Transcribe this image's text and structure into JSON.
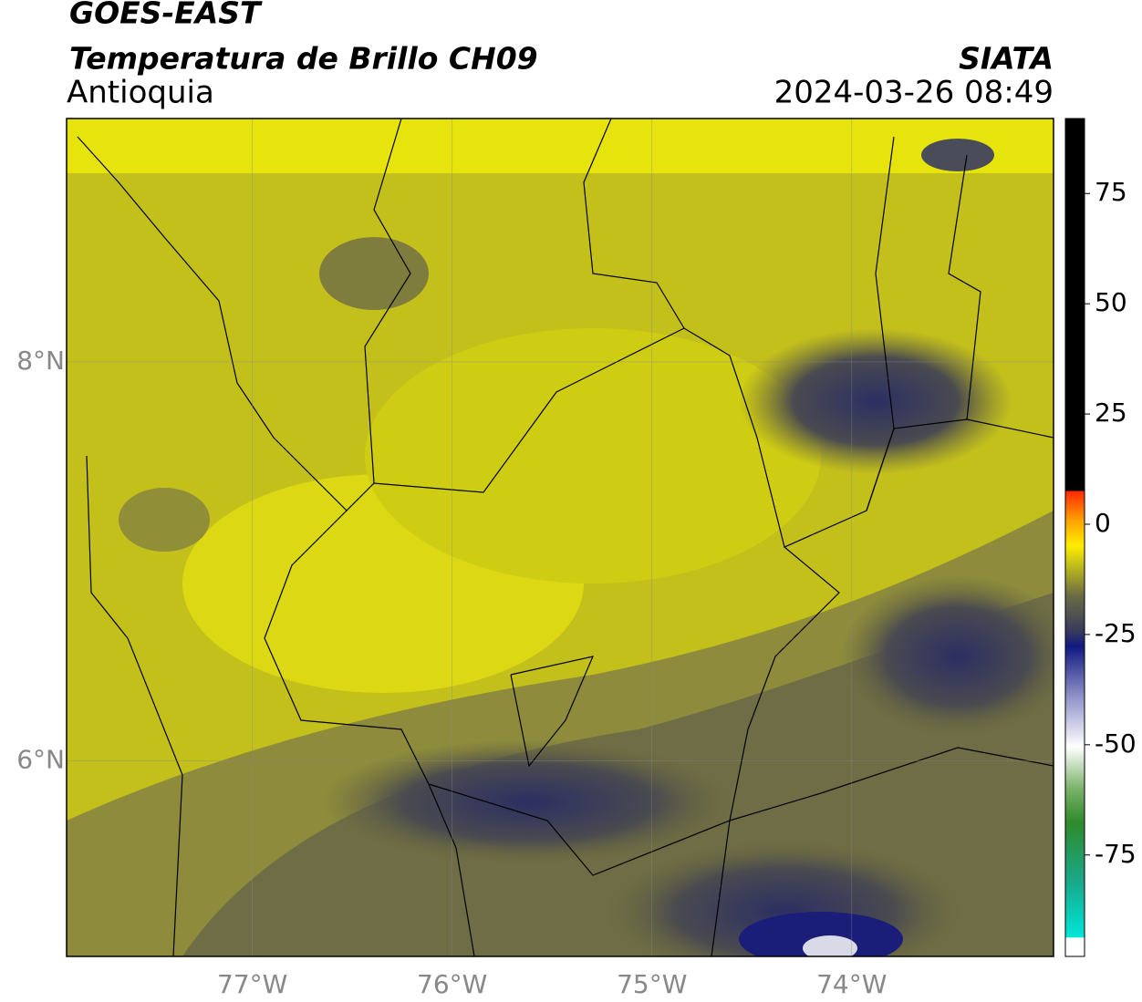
{
  "header": {
    "title": "GOES-EAST",
    "subtitle": "Temperatura de Brillo CH09",
    "region": "Antioquia",
    "agency": "SIATA",
    "timestamp": "2024-03-26 08:49"
  },
  "map": {
    "lonlim": [
      -77.93,
      -72.99
    ],
    "latlim": [
      5.02,
      9.22
    ],
    "lon_ticks": [
      {
        "value": -77,
        "label": "77°W"
      },
      {
        "value": -76,
        "label": "76°W"
      },
      {
        "value": -75,
        "label": "75°W"
      },
      {
        "value": -74,
        "label": "74°W"
      }
    ],
    "lat_ticks": [
      {
        "value": 8,
        "label": "8°N"
      },
      {
        "value": 6,
        "label": "6°N"
      }
    ],
    "grid": true
  },
  "colorbar": {
    "lim": [
      -98,
      92
    ],
    "ticks": [
      75,
      50,
      25,
      0,
      -25,
      -50,
      -75
    ]
  }
}
